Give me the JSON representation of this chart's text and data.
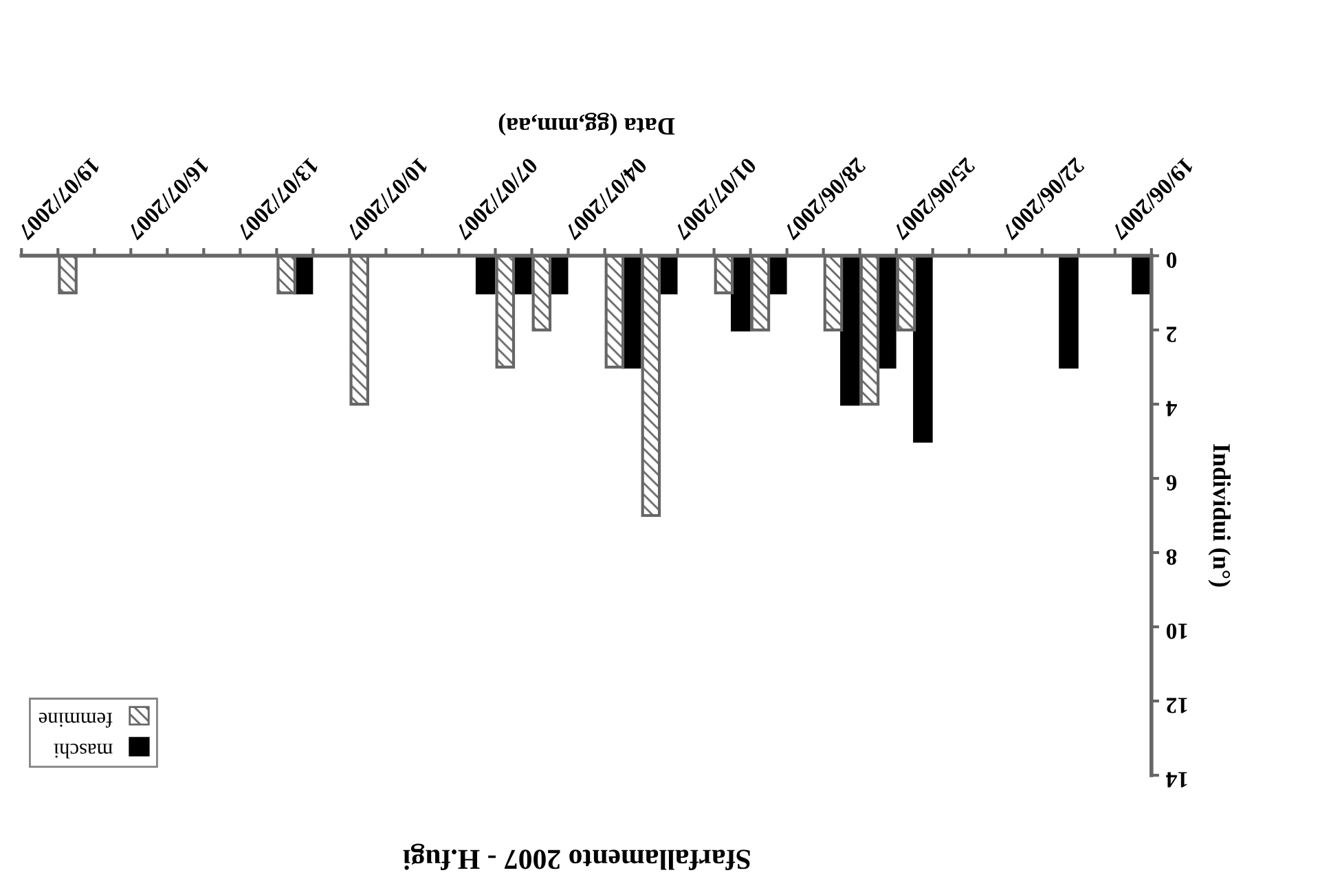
{
  "chart_data": {
    "type": "bar",
    "title": "Sfarfallamento 2007 - H.fugi",
    "xlabel": "Data (gg,mm,aa)",
    "ylabel": "Individui (n°)",
    "x": [
      "2007-06-19T12:00",
      "2007-06-21T12:00",
      "2007-06-25T12:00",
      "2007-06-26T12:00",
      "2007-06-27T12:00",
      "2007-06-29T12:00",
      "2007-06-30T12:00",
      "2007-07-02T12:00",
      "2007-07-03T12:00",
      "2007-07-05T12:00",
      "2007-07-06T12:00",
      "2007-07-07T12:00",
      "2007-07-10T12:00",
      "2007-07-12T12:00",
      "2007-07-18T12:00"
    ],
    "series": [
      {
        "name": "maschi",
        "color": "#000000",
        "values": [
          1,
          3,
          5,
          3,
          4,
          1,
          2,
          1,
          3,
          1,
          1,
          1,
          null,
          1,
          null
        ]
      },
      {
        "name": "femmine",
        "color": "#666666",
        "values": [
          null,
          null,
          2,
          4,
          2,
          2,
          1,
          7,
          3,
          2,
          3,
          null,
          4,
          1,
          1
        ]
      }
    ],
    "xlim": [
      "2007-07-20",
      "2007-06-19"
    ],
    "xticks": [
      {
        "value": "2007-06-19",
        "label": "19/06/2007"
      },
      {
        "value": "2007-06-20",
        "label": null
      },
      {
        "value": "2007-06-21",
        "label": null
      },
      {
        "value": "2007-06-22",
        "label": "22/06/2007"
      },
      {
        "value": "2007-06-23",
        "label": null
      },
      {
        "value": "2007-06-24",
        "label": null
      },
      {
        "value": "2007-06-25",
        "label": "25/06/2007"
      },
      {
        "value": "2007-06-26",
        "label": null
      },
      {
        "value": "2007-06-27",
        "label": null
      },
      {
        "value": "2007-06-28",
        "label": "28/06/2007"
      },
      {
        "value": "2007-06-29",
        "label": null
      },
      {
        "value": "2007-06-30",
        "label": null
      },
      {
        "value": "2007-07-01",
        "label": "01/07/2007"
      },
      {
        "value": "2007-07-02",
        "label": null
      },
      {
        "value": "2007-07-03",
        "label": null
      },
      {
        "value": "2007-07-04",
        "label": "04/07/2007"
      },
      {
        "value": "2007-07-05",
        "label": null
      },
      {
        "value": "2007-07-06",
        "label": null
      },
      {
        "value": "2007-07-07",
        "label": "07/07/2007"
      },
      {
        "value": "2007-07-08",
        "label": null
      },
      {
        "value": "2007-07-09",
        "label": null
      },
      {
        "value": "2007-07-10",
        "label": "10/07/2007"
      },
      {
        "value": "2007-07-11",
        "label": null
      },
      {
        "value": "2007-07-12",
        "label": null
      },
      {
        "value": "2007-07-13",
        "label": "13/07/2007"
      },
      {
        "value": "2007-07-14",
        "label": null
      },
      {
        "value": "2007-07-15",
        "label": null
      },
      {
        "value": "2007-07-16",
        "label": "16/07/2007"
      },
      {
        "value": "2007-07-17",
        "label": null
      },
      {
        "value": "2007-07-18",
        "label": null
      },
      {
        "value": "2007-07-19",
        "label": "19/07/2007"
      },
      {
        "value": "2007-07-20",
        "label": null
      }
    ],
    "ylim": [
      14,
      0
    ],
    "yticks": [
      0,
      2,
      4,
      6,
      8,
      10,
      12,
      14
    ],
    "grid": false,
    "legend": "bottom left"
  }
}
